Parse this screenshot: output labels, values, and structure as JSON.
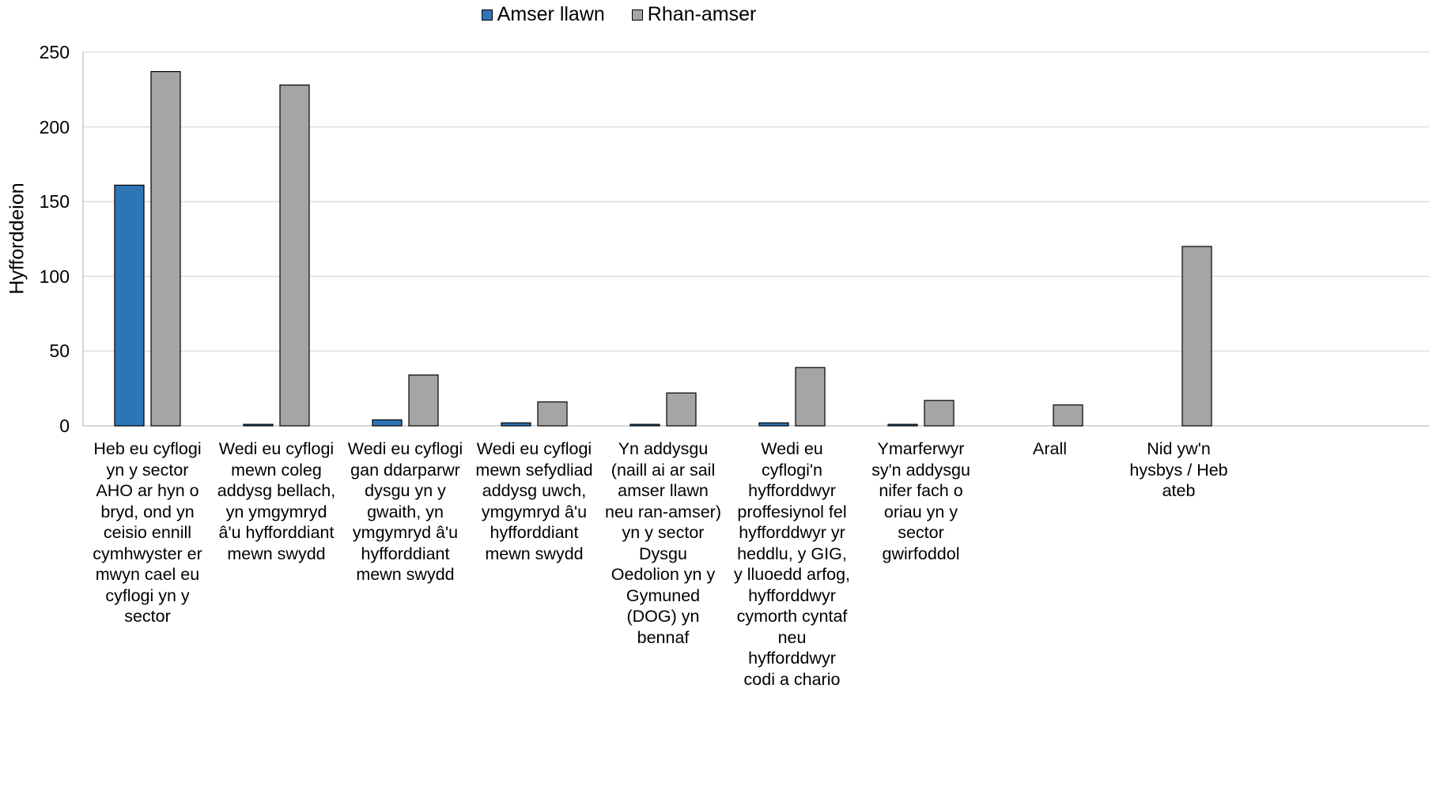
{
  "chart_data": {
    "type": "bar",
    "ylabel": "Hyfforddeion",
    "ylim": [
      0,
      250
    ],
    "yticks": [
      0,
      50,
      100,
      150,
      200,
      250
    ],
    "legend_position": "top-center",
    "grid": true,
    "categories": [
      [
        "Heb eu cyflogi",
        "yn y sector",
        "AHO ar hyn o",
        "bryd, ond yn",
        "ceisio ennill",
        "cymhwyster er",
        "mwyn cael eu",
        "cyflogi yn y",
        "sector"
      ],
      [
        "Wedi eu cyflogi",
        "mewn coleg",
        "addysg bellach,",
        "yn ymgymryd",
        "â'u hyfforddiant",
        "mewn swydd"
      ],
      [
        "Wedi eu cyflogi",
        "gan ddarparwr",
        "dysgu yn y",
        "gwaith, yn",
        "ymgymryd â'u",
        "hyfforddiant",
        "mewn swydd"
      ],
      [
        "Wedi eu cyflogi",
        "mewn sefydliad",
        "addysg uwch,",
        "ymgymryd â'u",
        "hyfforddiant",
        "mewn swydd"
      ],
      [
        "Yn addysgu",
        "(naill ai ar sail",
        "amser llawn",
        "neu ran-amser)",
        "yn y sector",
        "Dysgu",
        "Oedolion yn y",
        "Gymuned",
        "(DOG) yn",
        "bennaf"
      ],
      [
        "Wedi eu",
        "cyflogi'n",
        "hyfforddwyr",
        "proffesiynol fel",
        "hyfforddwyr yr",
        "heddlu, y GIG,",
        "y lluoedd arfog,",
        "hyfforddwyr",
        "cymorth cyntaf",
        "neu",
        "hyfforddwyr",
        "codi a chario"
      ],
      [
        "Ymarferwyr",
        "sy'n addysgu",
        "nifer fach o",
        "oriau yn y",
        "sector",
        "gwirfoddol"
      ],
      [
        "Arall"
      ],
      [
        "Nid yw'n",
        "hysbys / Heb",
        "ateb"
      ]
    ],
    "series": [
      {
        "name": "Amser llawn",
        "color": "#2e75b6",
        "values": [
          161,
          1,
          4,
          2,
          1,
          2,
          1,
          0,
          0
        ]
      },
      {
        "name": "Rhan-amser",
        "color": "#a5a5a5",
        "values": [
          237,
          228,
          34,
          16,
          22,
          39,
          17,
          14,
          120
        ]
      }
    ]
  }
}
